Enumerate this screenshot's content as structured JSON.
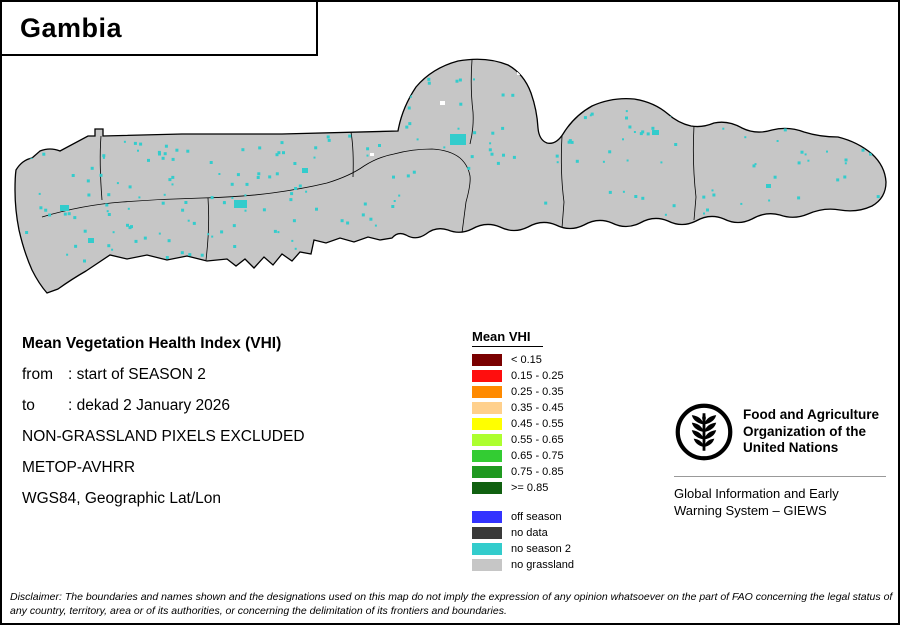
{
  "title": "Gambia",
  "info": {
    "heading": "Mean Vegetation Health Index (VHI)",
    "from_label": "from",
    "from_value": ": start of SEASON 2",
    "to_label": "to",
    "to_value": ": dekad 2 January 2026",
    "line3": "NON-GRASSLAND PIXELS EXCLUDED",
    "line4": "METOP-AVHRR",
    "line5": "WGS84, Geographic Lat/Lon"
  },
  "legend": {
    "title": "Mean VHI",
    "classes": [
      {
        "label": "< 0.15",
        "color": "#7A0000"
      },
      {
        "label": "0.15 - 0.25",
        "color": "#FF0E0E"
      },
      {
        "label": "0.25 - 0.35",
        "color": "#FF8A00"
      },
      {
        "label": "0.35 - 0.45",
        "color": "#FFD08C"
      },
      {
        "label": "0.45 - 0.55",
        "color": "#FFFF00"
      },
      {
        "label": "0.55 - 0.65",
        "color": "#ADFF2F"
      },
      {
        "label": "0.65 - 0.75",
        "color": "#33CC33"
      },
      {
        "label": "0.75 - 0.85",
        "color": "#1F9920"
      },
      {
        "label": ">= 0.85",
        "color": "#106010"
      }
    ],
    "status_classes": [
      {
        "label": "off season",
        "color": "#3333FF"
      },
      {
        "label": "no data",
        "color": "#3A3A3A"
      },
      {
        "label": "no season 2",
        "color": "#33CCCC"
      },
      {
        "label": "no grassland",
        "color": "#C6C6C6"
      }
    ]
  },
  "org": {
    "name_lines": [
      "Food and Agriculture",
      "Organization of the",
      "United Nations"
    ],
    "giews_lines": [
      "Global Information and Early",
      "Warning System – GIEWS"
    ]
  },
  "disclaimer": "Disclaimer: The boundaries and names shown and the designations used on this map do not imply the expression of any opinion whatsoever on the part of FAO concerning the legal status of any country, territory, area or of its authorities, or concerning the delimitation of its frontiers and boundaries.",
  "map": {
    "land_color": "#C6C6C6",
    "speckle_color": "#33CCCC",
    "speckle_alt_color": "#FFFFFF"
  }
}
